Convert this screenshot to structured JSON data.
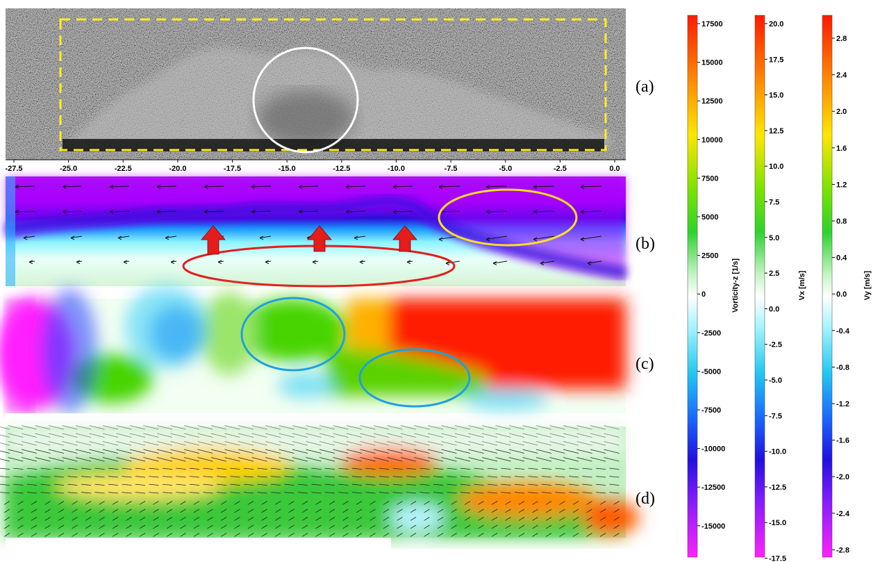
{
  "panel_labels": [
    "(a)",
    "(b)",
    "(c)",
    "(d)"
  ],
  "x_axis": {
    "ticks": [
      "-27.5",
      "-25.0",
      "-22.5",
      "-20.0",
      "-17.5",
      "-15.0",
      "-12.5",
      "-10.0",
      "-7.5",
      "-5.0",
      "-2.5",
      "0.0"
    ]
  },
  "colorbars": [
    {
      "title": "Vorticity-z [1/s]",
      "ticks": [
        "17500",
        "15000",
        "12500",
        "10000",
        "7500",
        "5000",
        "2500",
        "0",
        "-2500",
        "-5000",
        "-7500",
        "-10000",
        "-12500",
        "-15000"
      ]
    },
    {
      "title": "Vx [m/s]",
      "ticks": [
        "20.0",
        "17.5",
        "15.0",
        "12.5",
        "10.0",
        "7.5",
        "5.0",
        "2.5",
        "0.0",
        "-2.5",
        "-5.0",
        "-7.5",
        "-10.0",
        "-12.5",
        "-15.0",
        "-17.5"
      ]
    },
    {
      "title": "Vy [m/s]",
      "ticks": [
        "2.8",
        "2.4",
        "2.0",
        "1.6",
        "1.2",
        "0.8",
        "0.4",
        "0.0",
        "-0.4",
        "-0.8",
        "-1.2",
        "-1.6",
        "-2.0",
        "-2.4",
        "-2.8"
      ]
    }
  ],
  "annotations": {
    "a_highlight": "white-circle",
    "a_region": "yellow-dashed-rectangle",
    "b_marks": [
      "yellow-ellipse",
      "red-ellipse",
      "red-up-arrows"
    ],
    "c_marks": [
      "blue-ellipse",
      "blue-ellipse"
    ]
  },
  "colors": {
    "dashed_box": "#ffee22",
    "circle": "#ffffff",
    "yellow_ellipse": "#ffe020",
    "red_ellipse": "#e51c1c",
    "arrow_fill": "#e51c1c",
    "blue_ellipse": "#1ea0e0"
  }
}
